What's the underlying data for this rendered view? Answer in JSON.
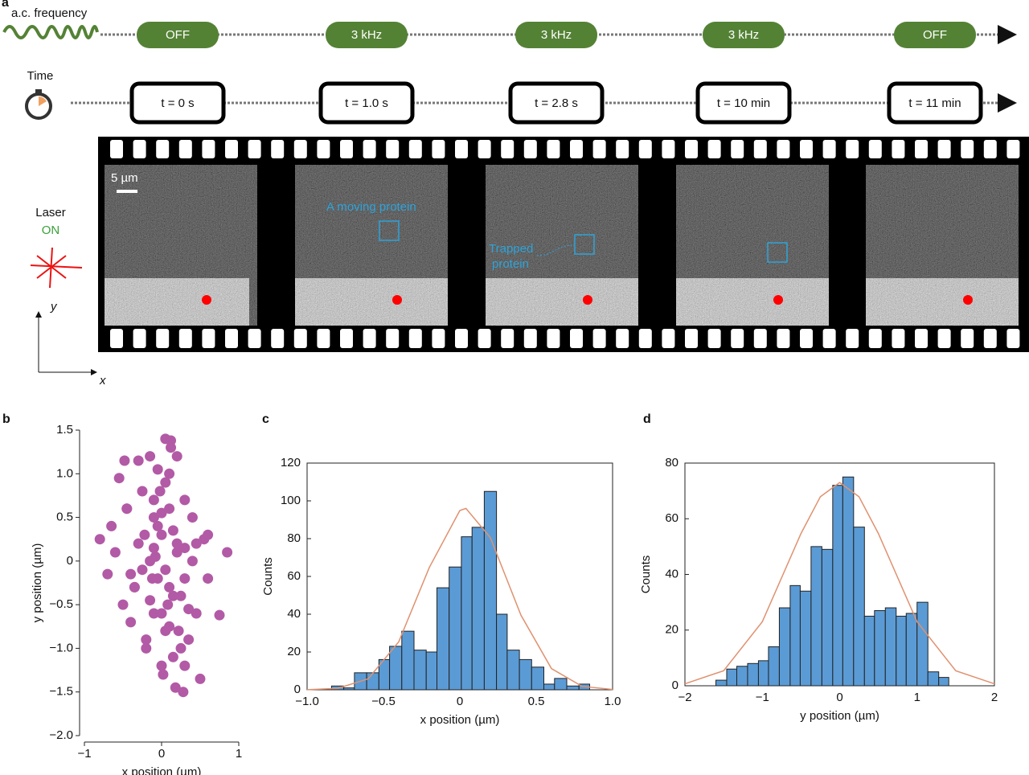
{
  "panel_a": {
    "label": "a",
    "frequency_label": "a.c. frequency",
    "frequencies": [
      "OFF",
      "3 kHz",
      "3 kHz",
      "3 kHz",
      "OFF"
    ],
    "time_label": "Time",
    "times": [
      "t = 0 s",
      "t = 1.0 s",
      "t = 2.8 s",
      "t = 10 min",
      "t = 11 min"
    ],
    "scale_bar": "5 µm",
    "moving_protein": "A moving protein",
    "trapped_protein": [
      "Trapped",
      "protein"
    ],
    "laser": "Laser",
    "laser_state": "ON",
    "axis_y": "y",
    "axis_x": "x"
  },
  "chart_data": [
    {
      "type": "scatter",
      "label": "b",
      "xlabel": "x position (µm)",
      "ylabel": "y position (µm)",
      "color": "#b25aa6",
      "frame": false,
      "xlim": [
        -1,
        1
      ],
      "xticks": [
        {
          "value": -1,
          "label": "−1"
        },
        0,
        1
      ],
      "ylim": [
        -2,
        1.5
      ],
      "yticks": [
        {
          "value": -2,
          "label": "−2.0"
        },
        {
          "value": -1.5,
          "label": "−1.5"
        },
        {
          "value": -1,
          "label": "−1.0"
        },
        {
          "value": -0.5,
          "label": "−0.5"
        },
        0,
        0.5,
        {
          "value": 1,
          "label": "1.0"
        },
        1.5
      ],
      "x": [
        -0.8,
        0.85,
        0.75,
        0.5,
        0.28,
        0.18,
        0.05,
        0.12,
        -0.48,
        -0.3,
        -0.55,
        -0.45,
        -0.6,
        -0.5,
        -0.35,
        -0.25,
        -0.15,
        -0.1,
        -0.05,
        0,
        0.05,
        0.1,
        0.15,
        0.2,
        0.25,
        0.3,
        0.35,
        0.4,
        0.45,
        0.55,
        0.6,
        -0.65,
        -0.4,
        -0.2,
        0.1,
        0.3,
        0.2,
        -0.1,
        0,
        -0.3,
        0.4,
        -0.15,
        0.05,
        0.15,
        -0.05,
        0.25,
        -0.25,
        0.1,
        -0.1,
        0.0,
        0.2,
        -0.2,
        0.05,
        -0.05,
        0.3,
        -0.35,
        0.15,
        -0.15,
        0.0,
        0.1,
        -0.1,
        0.35,
        -0.4,
        0.45,
        0.02,
        -0.02,
        0.08,
        -0.08,
        0.12,
        -0.12,
        0.6,
        -0.7,
        0.3,
        -0.45,
        0.22,
        -0.22
      ],
      "values": [
        0.25,
        0.1,
        -0.62,
        -1.35,
        -1.5,
        -1.45,
        1.4,
        1.38,
        1.15,
        1.15,
        0.95,
        0.6,
        0.1,
        -0.5,
        -0.3,
        0.8,
        1.2,
        0.5,
        -0.2,
        0.3,
        -0.8,
        1.0,
        -1.1,
        0.2,
        -0.4,
        0.7,
        -0.9,
        0.0,
        -0.6,
        0.25,
        0.3,
        0.4,
        -0.7,
        -1.0,
        0.6,
        -0.2,
        1.2,
        -0.6,
        -1.2,
        0.2,
        0.5,
        0.0,
        0.9,
        -0.4,
        0.4,
        -1.0,
        -0.1,
        -0.3,
        0.7,
        -0.6,
        0.1,
        -0.9,
        -0.1,
        1.05,
        0.15,
        -0.3,
        0.35,
        -0.45,
        0.55,
        -0.75,
        0.15,
        -0.55,
        -0.15,
        0.2,
        -1.3,
        0.8,
        -0.5,
        0.05,
        1.3,
        -0.2,
        -0.2,
        -0.15,
        -1.2,
        0.6,
        -0.8,
        0.3
      ]
    },
    {
      "type": "histogram",
      "label": "c",
      "xlabel": "x position (µm)",
      "ylabel": "Counts",
      "color": "#5b9bd5",
      "frame": true,
      "xlim": [
        -1,
        1
      ],
      "xticks": [
        {
          "value": -1,
          "label": "−1.0"
        },
        {
          "value": -0.5,
          "label": "−0.5"
        },
        0,
        0.5,
        {
          "value": 1,
          "label": "1.0"
        }
      ],
      "ylim": [
        0,
        120
      ],
      "yticks": [
        0,
        20,
        40,
        60,
        80,
        100,
        120
      ],
      "bins": [
        -0.84,
        -0.76,
        -0.69,
        -0.61,
        -0.53,
        -0.46,
        -0.38,
        -0.3,
        -0.22,
        -0.15,
        -0.07,
        0.01,
        0.08,
        0.16,
        0.24,
        0.31,
        0.39,
        0.47,
        0.55,
        0.62,
        0.7,
        0.78,
        0.85
      ],
      "values": [
        2,
        1,
        9,
        9,
        16,
        23,
        31,
        21,
        20,
        54,
        65,
        81,
        86,
        105,
        40,
        21,
        16,
        12,
        3,
        6,
        2,
        3
      ],
      "lines": [
        {
          "color": "#e0916f",
          "x": [
            -1,
            -0.8,
            -0.6,
            -0.4,
            -0.2,
            0,
            0.04,
            0.2,
            0.4,
            0.6,
            0.8,
            1
          ],
          "values": [
            0.06,
            0.76,
            5.8,
            25.4,
            64.7,
            94.9,
            96,
            80.5,
            39.5,
            11.2,
            1.83,
            0.17
          ]
        }
      ]
    },
    {
      "type": "histogram",
      "label": "d",
      "xlabel": "y position (µm)",
      "ylabel": "Counts",
      "color": "#5b9bd5",
      "frame": true,
      "xlim": [
        -2,
        2
      ],
      "xticks": [
        {
          "value": -2,
          "label": "−2"
        },
        {
          "value": -1,
          "label": "−1"
        },
        0,
        1,
        2
      ],
      "ylim": [
        0,
        80
      ],
      "yticks": [
        0,
        20,
        40,
        60,
        80
      ],
      "bins": [
        -1.6,
        -1.46,
        -1.33,
        -1.19,
        -1.05,
        -0.92,
        -0.78,
        -0.64,
        -0.51,
        -0.37,
        -0.23,
        -0.09,
        0.04,
        0.18,
        0.32,
        0.45,
        0.59,
        0.73,
        0.86,
        1.0,
        1.14,
        1.28,
        1.41
      ],
      "values": [
        2,
        6,
        7,
        8,
        9,
        14,
        28,
        36,
        34,
        50,
        49,
        72,
        75,
        57,
        25,
        27,
        28,
        25,
        26,
        30,
        5,
        3
      ],
      "lines": [
        {
          "color": "#e0916f",
          "x": [
            -2,
            -1.5,
            -1,
            -0.5,
            -0.25,
            0,
            0.25,
            0.5,
            1,
            1.5,
            2
          ],
          "values": [
            0.7,
            5.4,
            23,
            54.7,
            67.9,
            73,
            67.9,
            54.7,
            23,
            5.4,
            0.7
          ]
        }
      ]
    }
  ]
}
